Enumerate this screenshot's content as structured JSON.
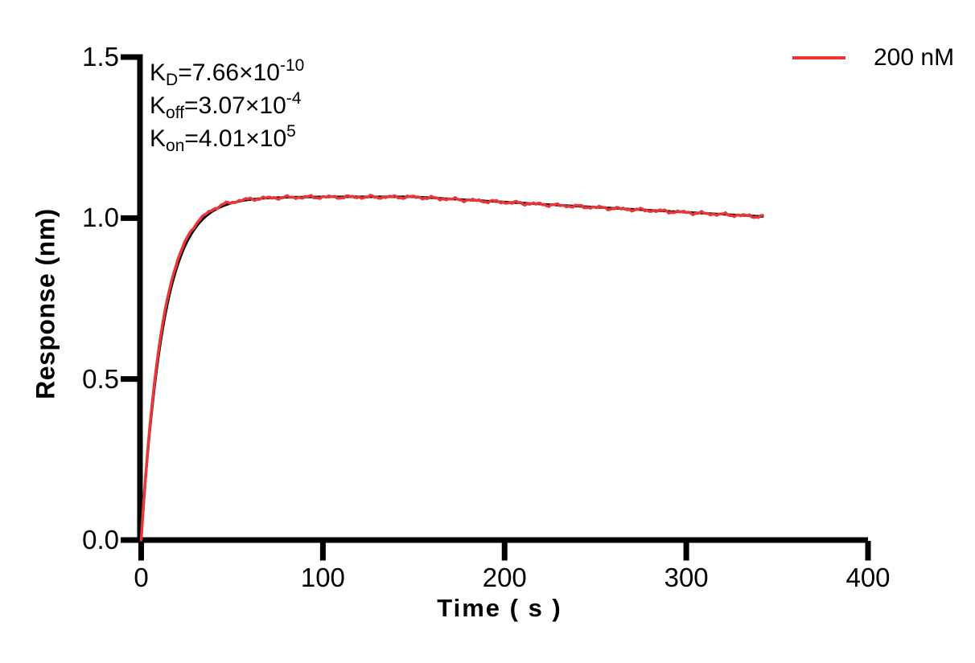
{
  "chart_data": {
    "type": "line",
    "title": "",
    "xlabel": "Time ( s )",
    "ylabel": "Response (nm)",
    "xlim": [
      0,
      400
    ],
    "ylim": [
      0.0,
      1.5
    ],
    "x_ticks": [
      "0",
      "100",
      "200",
      "300",
      "400"
    ],
    "y_ticks": [
      "0.0",
      "0.5",
      "1.0",
      "1.5"
    ],
    "grid": false,
    "legend_position": "top-right-outside",
    "axis_color": "#000000",
    "legend": [
      {
        "label": "200 nM",
        "color": "#e8363b"
      }
    ],
    "annotations": [
      {
        "base": "K",
        "sub": "D",
        "mid": "=7.66×10",
        "sup": "-10"
      },
      {
        "base": "K",
        "sub": "off",
        "mid": "=3.07×10",
        "sup": "-4"
      },
      {
        "base": "K",
        "sub": "on",
        "mid": "=4.01×10",
        "sup": "5"
      }
    ],
    "kinetics": {
      "KD": "7.66e-10",
      "koff": "3.07e-4",
      "kon": "4.01e5",
      "concentration": "200 nM",
      "association_end_s": 150,
      "trace_end_s": 342,
      "plateau_response_nm": 1.066
    },
    "model": {
      "kobs_fit": 0.0805,
      "kobs_data": 0.0842,
      "koff": 0.000307,
      "rmax_fit": 1.066,
      "rmax_data": 1.0653,
      "t_assoc": 150,
      "t_end": 342,
      "noise_amp": [
        0.003,
        0.0022,
        0.0013
      ],
      "noise_freq": [
        0.55,
        1.9,
        4.3
      ],
      "noise_phase": [
        1.2,
        0.0,
        0.7
      ]
    },
    "series": [
      {
        "name": "fit",
        "color": "#000000",
        "style": "smooth",
        "points": [
          [
            0,
            0.0
          ],
          [
            10,
            0.589
          ],
          [
            20,
            0.853
          ],
          [
            30,
            0.971
          ],
          [
            40,
            1.023
          ],
          [
            50,
            1.047
          ],
          [
            60,
            1.057
          ],
          [
            80,
            1.064
          ],
          [
            100,
            1.0655
          ],
          [
            120,
            1.0658
          ],
          [
            150,
            1.066
          ],
          [
            180,
            1.056
          ],
          [
            200,
            1.05
          ],
          [
            220,
            1.043
          ],
          [
            240,
            1.037
          ],
          [
            260,
            1.031
          ],
          [
            280,
            1.024
          ],
          [
            300,
            1.018
          ],
          [
            320,
            1.012
          ],
          [
            342,
            1.005
          ]
        ]
      },
      {
        "name": "200 nM",
        "color": "#e8363b",
        "style": "noisy",
        "points": [
          [
            0,
            0.0
          ],
          [
            10,
            0.607
          ],
          [
            20,
            0.866
          ],
          [
            30,
            0.978
          ],
          [
            40,
            1.027
          ],
          [
            50,
            1.049
          ],
          [
            60,
            1.058
          ],
          [
            80,
            1.064
          ],
          [
            100,
            1.066
          ],
          [
            120,
            1.066
          ],
          [
            150,
            1.065
          ],
          [
            180,
            1.056
          ],
          [
            200,
            1.05
          ],
          [
            220,
            1.043
          ],
          [
            240,
            1.037
          ],
          [
            260,
            1.03
          ],
          [
            280,
            1.024
          ],
          [
            300,
            1.018
          ],
          [
            320,
            1.012
          ],
          [
            342,
            1.005
          ]
        ]
      }
    ]
  }
}
